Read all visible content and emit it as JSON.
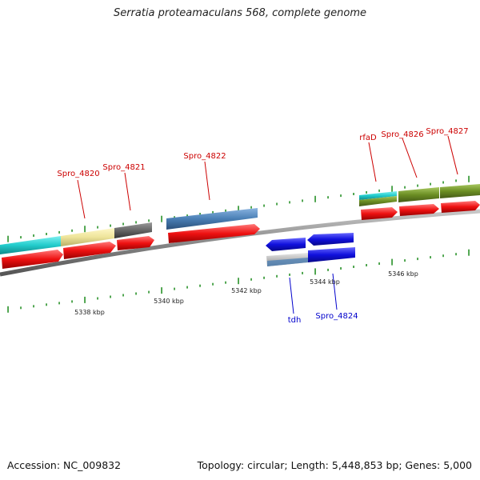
{
  "title": "Serratia proteamaculans 568, complete genome",
  "accession": "Accession: NC_009832",
  "summary": "Topology: circular; Length: 5,448,853 bp; Genes: 5,000",
  "scale_labels": [
    "5338 kbp",
    "5340 kbp",
    "5342 kbp",
    "5344 kbp",
    "5346 kbp"
  ],
  "gene_labels_top": [
    "Spro_4820",
    "Spro_4821",
    "Spro_4822",
    "rfaD",
    "Spro_4826",
    "Spro_4827"
  ],
  "gene_labels_bottom": [
    "tdh",
    "Spro_4824"
  ],
  "colors": {
    "plus_strand_label": "#cc0000",
    "minus_strand_label": "#0000cc",
    "cds_forward": "#ee1111",
    "cds_reverse": "#1010dd",
    "tick": "#1a8a1a",
    "backbone": "#808080"
  }
}
